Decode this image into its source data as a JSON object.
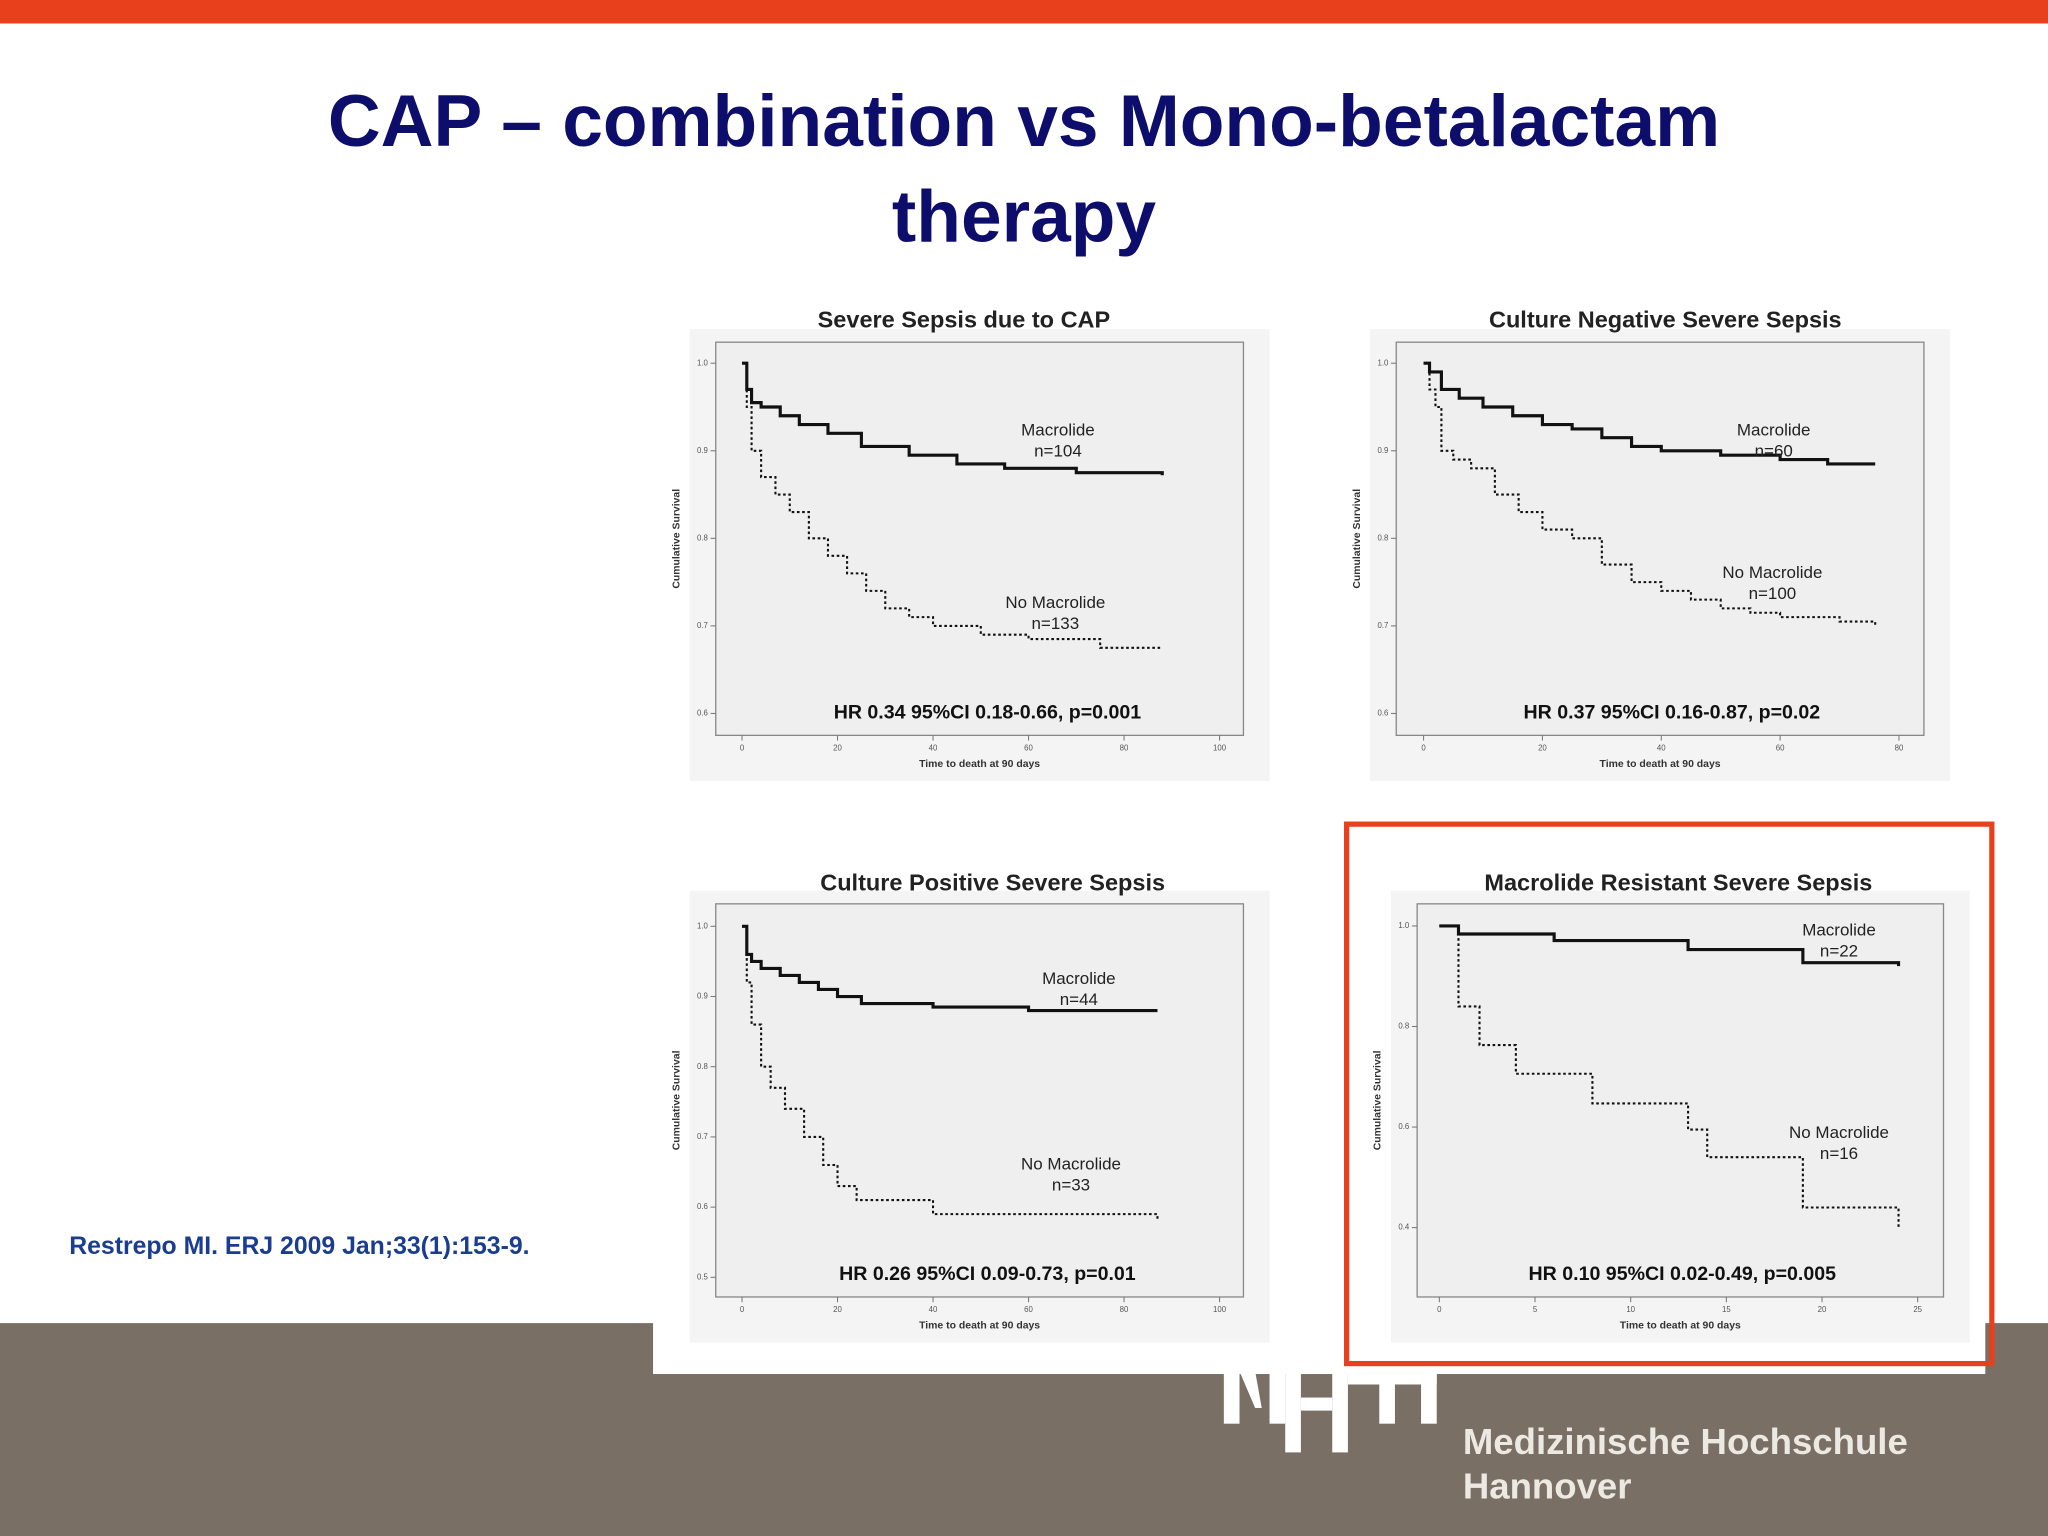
{
  "slide": {
    "title": [
      "CAP – combination vs Mono-betalactam",
      "therapy"
    ],
    "citation": "Restrepo MI. ERJ 2009 Jan;33(1):153-9.",
    "logo_text": [
      "Medizinische Hochschule",
      "Hannover"
    ]
  },
  "chart_data": [
    {
      "type": "line",
      "step": true,
      "title": "Severe Sepsis due to CAP",
      "x_label": "Time to death at 90 days",
      "y_label": "Cumulative Survival",
      "annotation": "HR 0.34  95%CI 0.18-0.66, p=0.001",
      "xlim": [
        -5.5,
        105
      ],
      "xticks": [
        0,
        20,
        40,
        60,
        80,
        100
      ],
      "ylim": [
        0.575,
        1.024
      ],
      "yticks": [
        {
          "value": 1,
          "label": "1.0"
        },
        0.9,
        0.8,
        0.7,
        0.6
      ],
      "series": [
        {
          "name": "Macrolide",
          "n": "n=104",
          "color": "#111111",
          "dashed": false,
          "x": [
            0,
            1,
            2,
            4,
            8,
            12,
            18,
            25,
            35,
            45,
            55,
            70,
            88
          ],
          "values": [
            1.0,
            0.97,
            0.955,
            0.95,
            0.94,
            0.93,
            0.92,
            0.905,
            0.895,
            0.885,
            0.88,
            0.875,
            0.872
          ]
        },
        {
          "name": "No Macrolide",
          "n": "n=133",
          "color": "#111111",
          "dashed": true,
          "x": [
            0,
            1,
            2,
            4,
            7,
            10,
            14,
            18,
            22,
            26,
            30,
            35,
            40,
            50,
            60,
            75,
            88
          ],
          "values": [
            1.0,
            0.95,
            0.9,
            0.87,
            0.85,
            0.83,
            0.8,
            0.78,
            0.76,
            0.74,
            0.72,
            0.71,
            0.7,
            0.69,
            0.685,
            0.675,
            0.675
          ]
        }
      ]
    },
    {
      "type": "line",
      "step": true,
      "title": "Culture Negative Severe Sepsis",
      "x_label": "Time to death at 90 days",
      "y_label": "Cumulative Survival",
      "annotation": "HR 0.37  95%CI 0.16-0.87, p=0.02",
      "xlim": [
        -4.6,
        84.2
      ],
      "xticks": [
        0,
        20,
        40,
        60,
        80
      ],
      "ylim": [
        0.575,
        1.024
      ],
      "yticks": [
        {
          "value": 1,
          "label": "1.0"
        },
        0.9,
        0.8,
        0.7,
        0.6
      ],
      "series": [
        {
          "name": "Macrolide",
          "n": "n=60",
          "color": "#111111",
          "dashed": false,
          "x": [
            0,
            1,
            3,
            6,
            10,
            15,
            20,
            25,
            30,
            35,
            40,
            50,
            60,
            68,
            76
          ],
          "values": [
            1.0,
            0.99,
            0.97,
            0.96,
            0.95,
            0.94,
            0.93,
            0.925,
            0.915,
            0.905,
            0.9,
            0.895,
            0.89,
            0.885,
            0.885
          ]
        },
        {
          "name": "No Macrolide",
          "n": "n=100",
          "color": "#111111",
          "dashed": true,
          "x": [
            0,
            1,
            2,
            3,
            5,
            8,
            12,
            16,
            20,
            25,
            30,
            35,
            40,
            45,
            50,
            55,
            60,
            70,
            76
          ],
          "values": [
            1.0,
            0.97,
            0.95,
            0.9,
            0.89,
            0.88,
            0.85,
            0.83,
            0.81,
            0.8,
            0.77,
            0.75,
            0.74,
            0.73,
            0.72,
            0.715,
            0.71,
            0.705,
            0.7
          ]
        }
      ]
    },
    {
      "type": "line",
      "step": true,
      "title": "Culture Positive Severe Sepsis",
      "x_label": "Time to death at 90 days",
      "y_label": "Cumulative Survival",
      "annotation": "HR 0.26  95%CI 0.09-0.73, p=0.01",
      "xlim": [
        -5.5,
        105
      ],
      "xticks": [
        0,
        20,
        40,
        60,
        80,
        100
      ],
      "ylim": [
        0.472,
        1.032
      ],
      "yticks": [
        {
          "value": 1,
          "label": "1.0"
        },
        0.9,
        0.8,
        0.7,
        0.6,
        0.5
      ],
      "series": [
        {
          "name": "Macrolide",
          "n": "n=44",
          "color": "#111111",
          "dashed": false,
          "x": [
            0,
            1,
            2,
            4,
            8,
            12,
            16,
            20,
            25,
            40,
            60,
            87
          ],
          "values": [
            1.0,
            0.96,
            0.95,
            0.94,
            0.93,
            0.92,
            0.91,
            0.9,
            0.89,
            0.885,
            0.88,
            0.88
          ]
        },
        {
          "name": "No Macrolide",
          "n": "n=33",
          "color": "#111111",
          "dashed": true,
          "x": [
            0,
            1,
            2,
            4,
            6,
            9,
            13,
            17,
            20,
            24,
            40,
            60,
            87
          ],
          "values": [
            1.0,
            0.92,
            0.86,
            0.8,
            0.77,
            0.74,
            0.7,
            0.66,
            0.63,
            0.61,
            0.59,
            0.59,
            0.58
          ]
        }
      ]
    },
    {
      "type": "line",
      "step": true,
      "title": "Macrolide Resistant Severe Sepsis",
      "x_label": "Time to death at 90 days",
      "y_label": "Cumulative Survival",
      "annotation": "HR 0.10  95%CI 0.02-0.49, p=0.005",
      "xlim": [
        -1.16,
        26.35
      ],
      "xticks": [
        0,
        5,
        10,
        15,
        20,
        25
      ],
      "ylim": [
        0.262,
        1.044
      ],
      "yticks": [
        {
          "value": 1,
          "label": "1.0"
        },
        0.8,
        0.6,
        0.4
      ],
      "series": [
        {
          "name": "Macrolide",
          "n": "n=22",
          "color": "#111111",
          "dashed": false,
          "x": [
            0,
            1,
            6,
            13,
            19,
            24
          ],
          "values": [
            1.0,
            0.984,
            0.971,
            0.953,
            0.927,
            0.92
          ]
        },
        {
          "name": "No Macrolide",
          "n": "n=16",
          "color": "#111111",
          "dashed": true,
          "x": [
            0,
            1,
            2.1,
            4,
            8,
            13,
            14,
            19,
            24
          ],
          "values": [
            1.0,
            0.84,
            0.763,
            0.706,
            0.647,
            0.595,
            0.54,
            0.44,
            0.4
          ]
        }
      ]
    }
  ]
}
